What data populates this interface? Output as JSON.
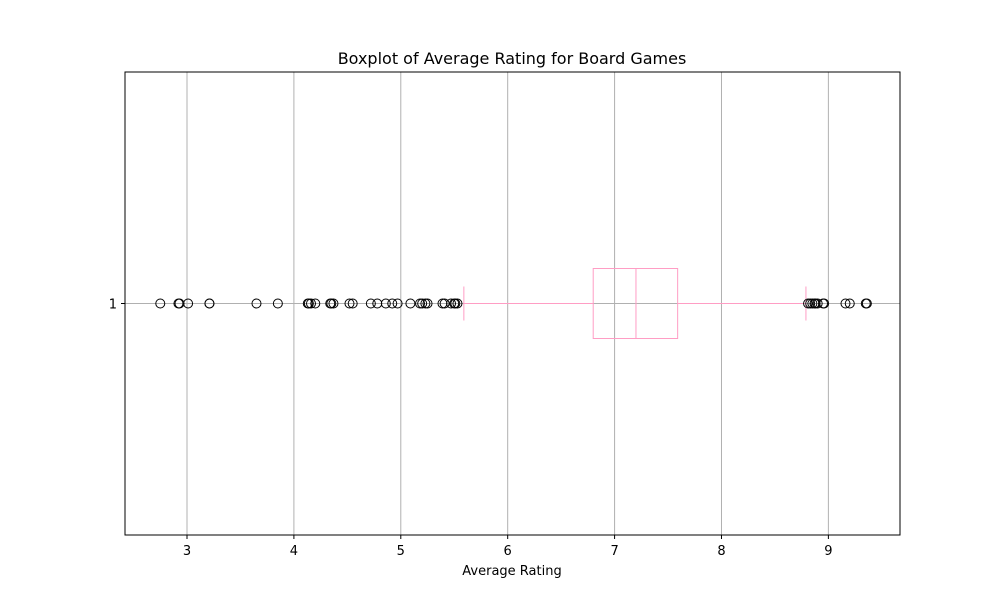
{
  "chart_data": {
    "type": "boxplot",
    "orientation": "horizontal",
    "title": "Boxplot of Average Rating for Board Games",
    "xlabel": "Average Rating",
    "ylabel": "",
    "xlim": [
      2.42,
      9.67
    ],
    "xticks": [
      3,
      4,
      5,
      6,
      7,
      8,
      9
    ],
    "yticks": [
      "1"
    ],
    "grid": true,
    "box_color": "#ff9dc4",
    "flier_color": "#000000",
    "grid_color": "#b0b0b0",
    "boxes": [
      {
        "label": "1",
        "whisker_low": 5.59,
        "q1": 6.8,
        "median": 7.2,
        "q3": 7.59,
        "whisker_high": 8.79,
        "outliers": [
          2.75,
          2.92,
          2.93,
          3.01,
          3.21,
          3.21,
          3.65,
          3.85,
          4.13,
          4.14,
          4.16,
          4.2,
          4.34,
          4.35,
          4.37,
          4.52,
          4.55,
          4.72,
          4.78,
          4.86,
          4.92,
          4.97,
          5.09,
          5.18,
          5.2,
          5.23,
          5.25,
          5.39,
          5.41,
          5.47,
          5.5,
          5.51,
          5.53,
          8.81,
          8.83,
          8.85,
          8.87,
          8.88,
          8.9,
          8.95,
          8.96,
          9.16,
          9.2,
          9.35,
          9.36
        ]
      }
    ]
  }
}
